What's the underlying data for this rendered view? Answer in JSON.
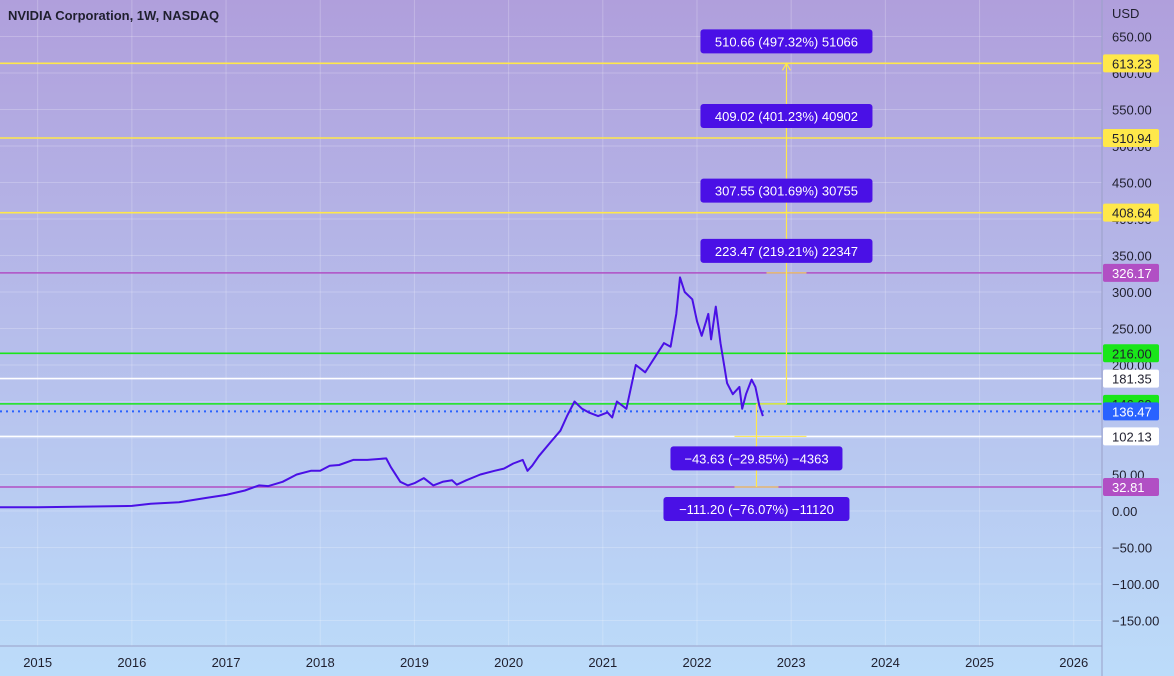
{
  "chart_data": {
    "type": "line",
    "title": "NVIDIA Corporation, 1W, NASDAQ",
    "currency_label": "USD",
    "x_ticks": [
      "2015",
      "2016",
      "2017",
      "2018",
      "2019",
      "2020",
      "2021",
      "2022",
      "2023",
      "2024",
      "2025",
      "2026"
    ],
    "xlim": [
      2014.6,
      2026.3
    ],
    "ylim": [
      -185,
      700
    ],
    "y_ticks": [
      -150,
      -100,
      -50,
      0,
      50,
      100,
      150,
      200,
      250,
      300,
      350,
      400,
      450,
      500,
      550,
      600,
      650
    ],
    "y_tick_labels": [
      "−150.00",
      "−100.00",
      "−50.00",
      "0.00",
      "50.00",
      "100.00",
      "150.00",
      "200.00",
      "250.00",
      "300.00",
      "350.00",
      "400.00",
      "450.00",
      "500.00",
      "550.00",
      "600.00",
      "650.00"
    ],
    "grid": true,
    "colors": {
      "bg_top": "#b09fdc",
      "bg_bottom": "#bcdcfa",
      "price_line": "#4a10e6",
      "yellow_level": "#ffe84a",
      "purple_level": "#b14fc4",
      "green_level": "#19e619",
      "white_level": "#ffffff",
      "current_price": "#2962ff",
      "measure_box": "#4a10e6"
    },
    "series": [
      {
        "x": [
          2014.6,
          2015.0,
          2015.5,
          2016.0,
          2016.2,
          2016.5,
          2016.8,
          2017.0,
          2017.2,
          2017.35,
          2017.45,
          2017.6,
          2017.75,
          2017.9,
          2018.0,
          2018.1,
          2018.2,
          2018.35,
          2018.5,
          2018.7,
          2018.75,
          2018.85,
          2018.93,
          2019.0,
          2019.1,
          2019.2,
          2019.3,
          2019.4,
          2019.45,
          2019.55,
          2019.7,
          2019.85,
          2019.95,
          2020.05,
          2020.15,
          2020.2,
          2020.25,
          2020.32,
          2020.45,
          2020.55,
          2020.62,
          2020.7,
          2020.78,
          2020.85,
          2020.95,
          2021.05,
          2021.1,
          2021.15,
          2021.25,
          2021.35,
          2021.45,
          2021.5,
          2021.55,
          2021.65,
          2021.72,
          2021.78,
          2021.82,
          2021.87,
          2021.95,
          2022.0,
          2022.05,
          2022.12,
          2022.15,
          2022.2,
          2022.25,
          2022.32,
          2022.38,
          2022.45,
          2022.48,
          2022.52,
          2022.58,
          2022.62,
          2022.66,
          2022.7
        ],
        "y": [
          5,
          5,
          6,
          7,
          10,
          12,
          18,
          22,
          28,
          35,
          34,
          40,
          50,
          55,
          55,
          62,
          63,
          70,
          70,
          72,
          60,
          40,
          35,
          38,
          45,
          35,
          40,
          42,
          36,
          42,
          50,
          55,
          58,
          65,
          70,
          55,
          62,
          75,
          95,
          110,
          130,
          150,
          140,
          135,
          130,
          135,
          128,
          150,
          140,
          200,
          190,
          200,
          210,
          230,
          225,
          270,
          320,
          300,
          290,
          260,
          240,
          270,
          235,
          280,
          230,
          175,
          160,
          170,
          140,
          160,
          180,
          170,
          145,
          130
        ]
      }
    ],
    "levels": [
      {
        "value": 613.23,
        "label": "613.23",
        "role": "yellow"
      },
      {
        "value": 510.94,
        "label": "510.94",
        "role": "yellow"
      },
      {
        "value": 408.64,
        "label": "408.64",
        "role": "yellow"
      },
      {
        "value": 326.17,
        "label": "326.17",
        "role": "purple"
      },
      {
        "value": 216.0,
        "label": "216.00",
        "role": "green"
      },
      {
        "value": 181.35,
        "label": "181.35",
        "role": "white"
      },
      {
        "value": 146.69,
        "label": "146.69",
        "role": "green"
      },
      {
        "value": 136.47,
        "label": "136.47",
        "role": "current"
      },
      {
        "value": 102.13,
        "label": "102.13",
        "role": "white"
      },
      {
        "value": 32.81,
        "label": "32.81",
        "role": "purple"
      }
    ],
    "measurements": [
      {
        "text": "510.66 (497.32%) 51066",
        "anchor_price": 613.23,
        "placement": "above"
      },
      {
        "text": "409.02 (401.23%) 40902",
        "anchor_price": 510.94,
        "placement": "above"
      },
      {
        "text": "307.55 (301.69%) 30755",
        "anchor_price": 408.64,
        "placement": "above"
      },
      {
        "text": "223.47 (219.21%) 22347",
        "anchor_price": 326.17,
        "placement": "above"
      },
      {
        "text": "−43.63 (−29.85%) −4363",
        "anchor_price": 102.13,
        "placement": "below"
      },
      {
        "text": "−111.20 (−76.07%) −11120",
        "anchor_price": 32.81,
        "placement": "below"
      }
    ],
    "measure_base_price": 146.69,
    "measure_x": 2022.95
  }
}
